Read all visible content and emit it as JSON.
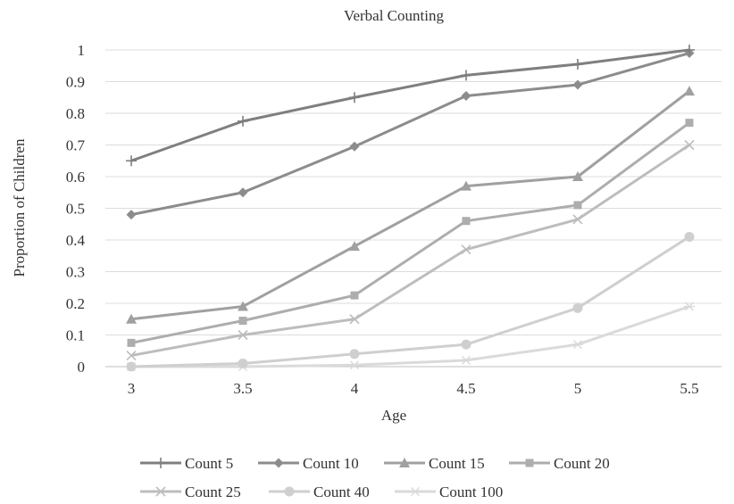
{
  "chart_data": {
    "type": "line",
    "title": "Verbal Counting",
    "xlabel": "Age",
    "ylabel": "Proportion of Children",
    "x": [
      3,
      3.5,
      4,
      4.5,
      5,
      5.5
    ],
    "x_tick_labels": [
      "3",
      "3.5",
      "4",
      "4.5",
      "5",
      "5.5"
    ],
    "ylim": [
      0,
      1
    ],
    "y_ticks": [
      0,
      0.1,
      0.2,
      0.3,
      0.4,
      0.5,
      0.6,
      0.7,
      0.8,
      0.9,
      1
    ],
    "y_tick_labels": [
      "0",
      "0.1",
      "0.2",
      "0.3",
      "0.4",
      "0.5",
      "0.6",
      "0.7",
      "0.8",
      "0.9",
      "1"
    ],
    "grid": true,
    "legend_position": "bottom",
    "series": [
      {
        "name": "Count 5",
        "values": [
          0.65,
          0.775,
          0.85,
          0.92,
          0.955,
          1.0
        ],
        "marker": "plus",
        "color": "#7f7f7f"
      },
      {
        "name": "Count 10",
        "values": [
          0.48,
          0.55,
          0.695,
          0.855,
          0.89,
          0.99
        ],
        "marker": "diamond",
        "color": "#8c8c8c"
      },
      {
        "name": "Count 15",
        "values": [
          0.15,
          0.19,
          0.38,
          0.57,
          0.6,
          0.87
        ],
        "marker": "triangle",
        "color": "#a0a0a0"
      },
      {
        "name": "Count 20",
        "values": [
          0.075,
          0.145,
          0.225,
          0.46,
          0.51,
          0.77
        ],
        "marker": "square",
        "color": "#adadad"
      },
      {
        "name": "Count 25",
        "values": [
          0.035,
          0.1,
          0.15,
          0.37,
          0.465,
          0.7
        ],
        "marker": "x",
        "color": "#bdbdbd"
      },
      {
        "name": "Count 40",
        "values": [
          0.0,
          0.01,
          0.04,
          0.07,
          0.185,
          0.41
        ],
        "marker": "circle",
        "color": "#cfcfcf"
      },
      {
        "name": "Count 100",
        "values": [
          0.0,
          0.0,
          0.005,
          0.02,
          0.07,
          0.19
        ],
        "marker": "star",
        "color": "#dadada"
      }
    ]
  }
}
